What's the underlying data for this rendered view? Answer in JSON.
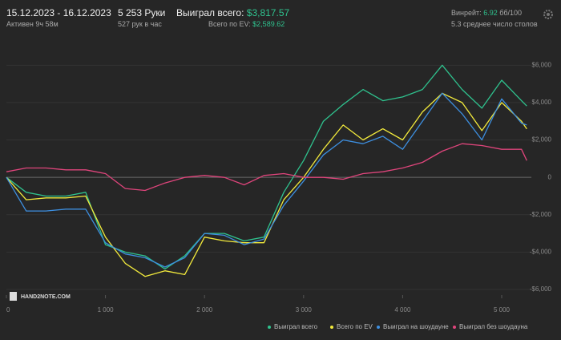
{
  "header": {
    "date_range": "15.12.2023 - 16.12.2023",
    "active": "Активен 9ч 58м",
    "hands": "5 253 Руки",
    "hands_per_hour": "527 рук в час",
    "won_label": "Выиграл всего:",
    "won_value": "$3,817.57",
    "ev_label": "Всего по EV:",
    "ev_value": "$2,589.62",
    "winrate_label": "Винрейт:",
    "winrate_value": "6.92",
    "winrate_unit": "бб/100",
    "tables": "5.3 среднее число столов"
  },
  "chart_data": {
    "type": "line",
    "watermark": "HAND2NOTE.COM",
    "x": [
      0,
      200,
      400,
      600,
      800,
      1000,
      1200,
      1400,
      1600,
      1800,
      2000,
      2200,
      2400,
      2600,
      2800,
      3000,
      3200,
      3400,
      3600,
      3800,
      4000,
      4200,
      4400,
      4600,
      4800,
      5000,
      5200,
      5253
    ],
    "series": [
      {
        "name": "Выиграл всего",
        "color": "#2fc28e",
        "values": [
          0,
          -800,
          -1000,
          -1000,
          -800,
          -3600,
          -4000,
          -4200,
          -4900,
          -4200,
          -3000,
          -3000,
          -3400,
          -3200,
          -800,
          900,
          3000,
          3900,
          4700,
          4100,
          4300,
          4700,
          6000,
          4700,
          3700,
          5200,
          4100,
          3817.57
        ]
      },
      {
        "name": "Всего по EV",
        "color": "#f2ea3c",
        "values": [
          0,
          -1200,
          -1100,
          -1100,
          -1000,
          -3200,
          -4600,
          -5300,
          -5000,
          -5200,
          -3200,
          -3400,
          -3500,
          -3500,
          -1200,
          0,
          1500,
          2800,
          2000,
          2600,
          2000,
          3500,
          4500,
          4000,
          2500,
          4000,
          3000,
          2589.62
        ]
      },
      {
        "name": "Выиграл на шоудауне",
        "color": "#3d8fe0",
        "values": [
          0,
          -1800,
          -1800,
          -1700,
          -1700,
          -3500,
          -4100,
          -4300,
          -4800,
          -4300,
          -3000,
          -3100,
          -3600,
          -3300,
          -1500,
          -200,
          1200,
          2000,
          1800,
          2200,
          1500,
          3000,
          4500,
          3400,
          2000,
          4200,
          2900,
          2800
        ]
      },
      {
        "name": "Выиграл без шоудауна",
        "color": "#e0457c",
        "values": [
          300,
          500,
          500,
          400,
          400,
          200,
          -600,
          -700,
          -300,
          0,
          100,
          0,
          -400,
          100,
          200,
          0,
          0,
          -100,
          200,
          300,
          500,
          800,
          1400,
          1800,
          1700,
          1500,
          1500,
          900
        ]
      }
    ],
    "xlim": [
      0,
      5300
    ],
    "xticks": [
      0,
      {
        "value": 1000,
        "label": "1 000"
      },
      {
        "value": 2000,
        "label": "2 000"
      },
      {
        "value": 3000,
        "label": "3 000"
      },
      {
        "value": 4000,
        "label": "4 000"
      },
      {
        "value": 5000,
        "label": "5 000"
      }
    ],
    "ylim": [
      -6300,
      6700
    ],
    "yticks": [
      {
        "value": -6000,
        "label": "-$6,000"
      },
      {
        "value": -4000,
        "label": "-$4,000"
      },
      {
        "value": -2000,
        "label": "-$2,000"
      },
      0,
      {
        "value": 2000,
        "label": "$2,000"
      },
      {
        "value": 4000,
        "label": "$4,000"
      },
      {
        "value": 6000,
        "label": "$6,000"
      }
    ],
    "grid": true,
    "legend": "bottom"
  }
}
